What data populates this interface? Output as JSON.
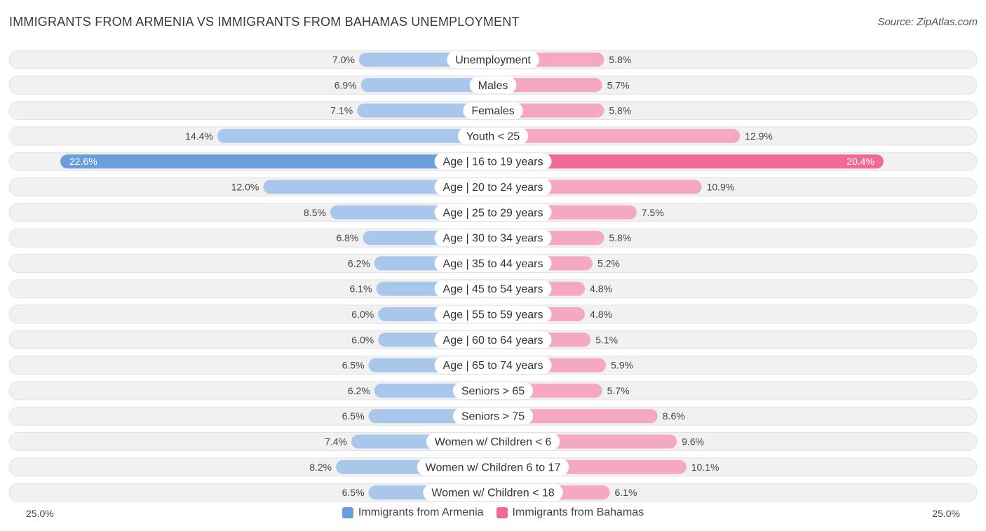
{
  "header": {
    "title": "IMMIGRANTS FROM ARMENIA VS IMMIGRANTS FROM BAHAMAS UNEMPLOYMENT",
    "source": "Source: ZipAtlas.com"
  },
  "colors": {
    "left_light": "#a9c6eb",
    "left_strong": "#6a9fdc",
    "right_light": "#f5a8c2",
    "right_strong": "#ef6b95",
    "row_bg": "#f1f1f1",
    "row_border": "#e2e2e2"
  },
  "chart_data": {
    "type": "bar",
    "orientation": "diverging-horizontal",
    "title": "IMMIGRANTS FROM ARMENIA VS IMMIGRANTS FROM BAHAMAS UNEMPLOYMENT",
    "xlim": [
      0,
      25.0
    ],
    "axis_left_label": "25.0%",
    "axis_right_label": "25.0%",
    "categories": [
      "Unemployment",
      "Males",
      "Females",
      "Youth < 25",
      "Age | 16 to 19 years",
      "Age | 20 to 24 years",
      "Age | 25 to 29 years",
      "Age | 30 to 34 years",
      "Age | 35 to 44 years",
      "Age | 45 to 54 years",
      "Age | 55 to 59 years",
      "Age | 60 to 64 years",
      "Age | 65 to 74 years",
      "Seniors > 65",
      "Seniors > 75",
      "Women w/ Children < 6",
      "Women w/ Children 6 to 17",
      "Women w/ Children < 18"
    ],
    "series": [
      {
        "name": "Immigrants from Armenia",
        "side": "left",
        "values": [
          7.0,
          6.9,
          7.1,
          14.4,
          22.6,
          12.0,
          8.5,
          6.8,
          6.2,
          6.1,
          6.0,
          6.0,
          6.5,
          6.2,
          6.5,
          7.4,
          8.2,
          6.5
        ],
        "labels": [
          "7.0%",
          "6.9%",
          "7.1%",
          "14.4%",
          "22.6%",
          "12.0%",
          "8.5%",
          "6.8%",
          "6.2%",
          "6.1%",
          "6.0%",
          "6.0%",
          "6.5%",
          "6.2%",
          "6.5%",
          "7.4%",
          "8.2%",
          "6.5%"
        ]
      },
      {
        "name": "Immigrants from Bahamas",
        "side": "right",
        "values": [
          5.8,
          5.7,
          5.8,
          12.9,
          20.4,
          10.9,
          7.5,
          5.8,
          5.2,
          4.8,
          4.8,
          5.1,
          5.9,
          5.7,
          8.6,
          9.6,
          10.1,
          6.1
        ],
        "labels": [
          "5.8%",
          "5.7%",
          "5.8%",
          "12.9%",
          "20.4%",
          "10.9%",
          "7.5%",
          "5.8%",
          "5.2%",
          "4.8%",
          "4.8%",
          "5.1%",
          "5.9%",
          "5.7%",
          "8.6%",
          "9.6%",
          "10.1%",
          "6.1%"
        ]
      }
    ],
    "legend": [
      "Immigrants from Armenia",
      "Immigrants from Bahamas"
    ]
  }
}
